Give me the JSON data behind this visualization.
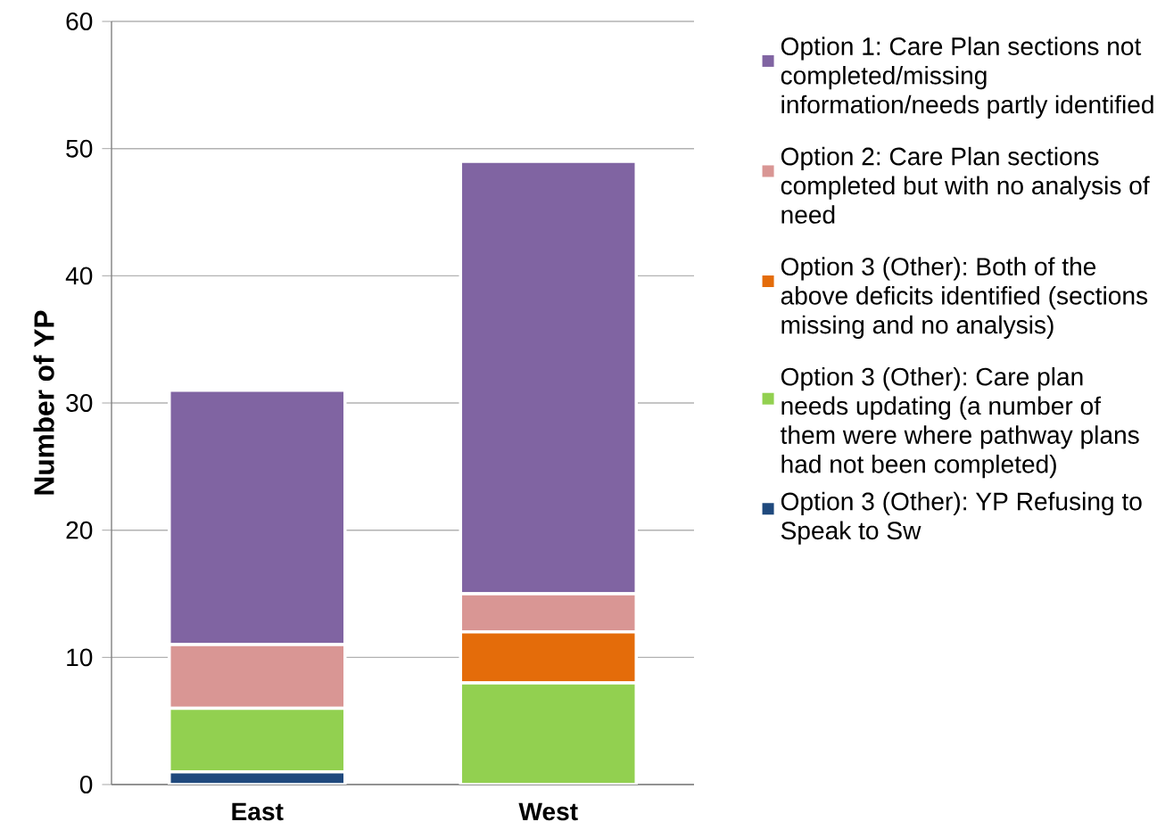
{
  "chart_data": {
    "type": "bar",
    "stacked": true,
    "ylabel": "Number of YP",
    "categories": [
      "East",
      "West"
    ],
    "series": [
      {
        "name": "Option 3 (Other): YP Refusing to Speak to Sw",
        "color": "#1f497d",
        "values": [
          1,
          0
        ]
      },
      {
        "name": "Option 3 (Other): Care plan needs updating (a number of them were where pathway plans had not been completed)",
        "color": "#92d050",
        "values": [
          5,
          8
        ]
      },
      {
        "name": "Option 3 (Other): Both of the above deficits identified (sections missing and no analysis)",
        "color": "#e46c0a",
        "values": [
          0,
          4
        ]
      },
      {
        "name": "Option 2: Care Plan sections completed but with no analysis of need",
        "color": "#d99694",
        "values": [
          5,
          3
        ]
      },
      {
        "name": "Option 1: Care Plan sections not completed/missing information/needs partly identified",
        "color": "#8064a2",
        "values": [
          20,
          34
        ]
      }
    ],
    "ylim": [
      0,
      60
    ],
    "yticks": [
      0,
      10,
      20,
      30,
      40,
      50,
      60
    ],
    "grid": "y",
    "legend": "right"
  }
}
